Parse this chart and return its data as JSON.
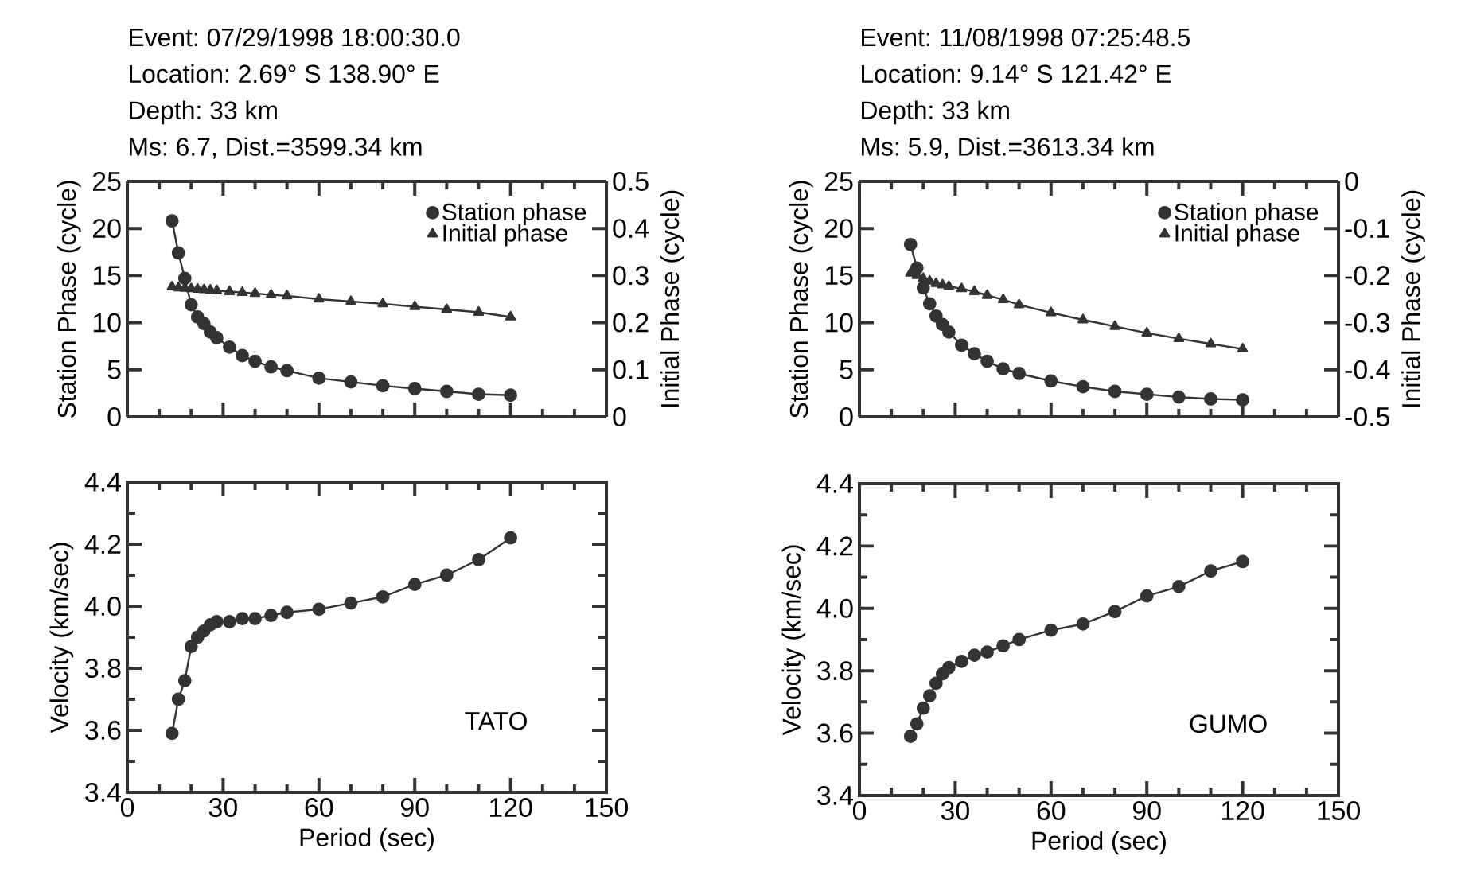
{
  "chart_data": [
    {
      "type": "line",
      "title": "Event: 07/29/1998 18:00:30.0",
      "subtitle": "Location: 2.69° S 138.90° E",
      "annotations": [
        "Depth: 33 km",
        "Ms: 6.7, Dist.=3599.34 km"
      ],
      "ylabel": "Station Phase (cycle)",
      "y2label": "Initial Phase (cycle)",
      "x": [
        14,
        16,
        18,
        20,
        22,
        24,
        26,
        28,
        32,
        36,
        40,
        45,
        50,
        60,
        70,
        80,
        90,
        100,
        110,
        120
      ],
      "series": [
        {
          "name": "Station phase",
          "color": "#333333",
          "marker": "circle",
          "values": [
            20.8,
            17.4,
            14.7,
            11.9,
            10.6,
            9.9,
            9.0,
            8.4,
            7.4,
            6.5,
            5.9,
            5.3,
            4.9,
            4.1,
            3.7,
            3.3,
            3.0,
            2.7,
            2.4,
            2.3
          ]
        },
        {
          "name": "Initial phase",
          "color": "#333333",
          "marker": "triangle",
          "axis": "y2",
          "values": [
            0.276,
            0.274,
            0.273,
            0.272,
            0.271,
            0.27,
            0.269,
            0.268,
            0.266,
            0.264,
            0.262,
            0.259,
            0.257,
            0.25,
            0.245,
            0.24,
            0.234,
            0.228,
            0.222,
            0.212
          ]
        }
      ],
      "xlim": [
        0,
        150
      ],
      "xticks": [
        0,
        30,
        60,
        90,
        120,
        150
      ],
      "ylim": [
        0,
        25
      ],
      "yticks": [
        0,
        5,
        10,
        15,
        20,
        25
      ],
      "y2lim": [
        0,
        0.5
      ],
      "y2ticks": [
        0,
        0.1,
        0.2,
        0.3,
        0.4,
        0.5
      ],
      "tick_labels": "y",
      "legend": "top right",
      "grid": false
    },
    {
      "type": "line",
      "title": "Event: 11/08/1998 07:25:48.5",
      "subtitle": "Location: 9.14° S 121.42° E",
      "annotations": [
        "Depth: 33 km",
        "Ms: 5.9, Dist.=3613.34 km"
      ],
      "ylabel": "Station Phase (cycle)",
      "y2label": "Initial Phase (cycle)",
      "x": [
        16,
        18,
        20,
        22,
        24,
        26,
        28,
        32,
        36,
        40,
        45,
        50,
        60,
        70,
        80,
        90,
        100,
        110,
        120
      ],
      "series": [
        {
          "name": "Station phase",
          "color": "#333333",
          "marker": "circle",
          "values": [
            18.3,
            15.8,
            13.7,
            12.0,
            10.7,
            9.8,
            9.0,
            7.6,
            6.7,
            5.9,
            5.1,
            4.6,
            3.8,
            3.2,
            2.7,
            2.4,
            2.1,
            1.9,
            1.8
          ]
        },
        {
          "name": "Initial phase",
          "color": "#333333",
          "marker": "triangle",
          "axis": "y2",
          "values": [
            -0.195,
            -0.2,
            -0.206,
            -0.212,
            -0.217,
            -0.22,
            -0.223,
            -0.228,
            -0.234,
            -0.242,
            -0.251,
            -0.262,
            -0.279,
            -0.294,
            -0.308,
            -0.322,
            -0.334,
            -0.345,
            -0.356
          ]
        }
      ],
      "xlim": [
        0,
        150
      ],
      "xticks": [
        0,
        30,
        60,
        90,
        120,
        150
      ],
      "ylim": [
        0,
        25
      ],
      "yticks": [
        0,
        5,
        10,
        15,
        20,
        25
      ],
      "y2lim": [
        -0.5,
        0
      ],
      "y2ticks": [
        -0.5,
        -0.4,
        -0.3,
        -0.2,
        -0.1,
        0
      ],
      "tick_labels": "y",
      "legend": "top right",
      "grid": false
    },
    {
      "type": "line",
      "xlabel": "Period (sec)",
      "ylabel": "Velocity (km/sec)",
      "annotations": [
        {
          "text": "TATO"
        }
      ],
      "x": [
        14,
        16,
        18,
        20,
        22,
        24,
        26,
        28,
        32,
        36,
        40,
        45,
        50,
        60,
        70,
        80,
        90,
        100,
        110,
        120
      ],
      "series": [
        {
          "color": "#333333",
          "marker": "circle",
          "values": [
            3.59,
            3.7,
            3.76,
            3.87,
            3.9,
            3.92,
            3.94,
            3.95,
            3.95,
            3.96,
            3.96,
            3.97,
            3.98,
            3.99,
            4.01,
            4.03,
            4.07,
            4.1,
            4.15,
            4.22
          ]
        }
      ],
      "xlim": [
        0,
        150
      ],
      "xticks": [
        0,
        30,
        60,
        90,
        120,
        150
      ],
      "ylim": [
        3.4,
        4.4
      ],
      "yticks": [
        3.4,
        3.6,
        3.8,
        {
          "value": 4.0,
          "label": "4.0"
        },
        4.2,
        4.4
      ],
      "grid": false
    },
    {
      "type": "line",
      "xlabel": "Period (sec)",
      "ylabel": "Velocity (km/sec)",
      "annotations": [
        {
          "text": "GUMO"
        }
      ],
      "x": [
        16,
        18,
        20,
        22,
        24,
        26,
        28,
        32,
        36,
        40,
        45,
        50,
        60,
        70,
        80,
        90,
        100,
        110,
        120
      ],
      "series": [
        {
          "color": "#333333",
          "marker": "circle",
          "values": [
            3.59,
            3.63,
            3.68,
            3.72,
            3.76,
            3.79,
            3.81,
            3.83,
            3.85,
            3.86,
            3.88,
            3.9,
            3.93,
            3.95,
            3.99,
            4.04,
            4.07,
            4.12,
            4.15
          ]
        }
      ],
      "xlim": [
        0,
        150
      ],
      "xticks": [
        0,
        30,
        60,
        90,
        120,
        150
      ],
      "ylim": [
        3.4,
        4.4
      ],
      "yticks": [
        3.4,
        3.6,
        3.8,
        {
          "value": 4.0,
          "label": "4.0"
        },
        4.2,
        4.4
      ],
      "grid": false
    }
  ]
}
